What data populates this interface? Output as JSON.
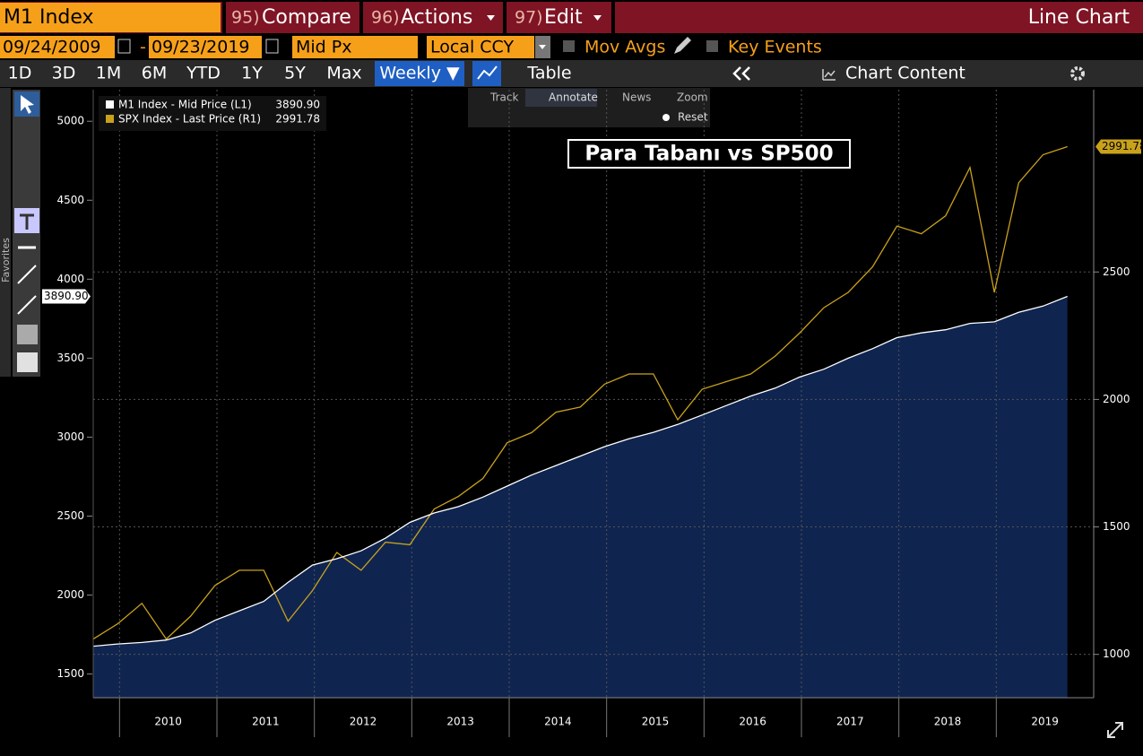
{
  "ui": {
    "security": "M1 Index",
    "menu": [
      {
        "num": "95)",
        "label": "Compare"
      },
      {
        "num": "96)",
        "label": "Actions"
      },
      {
        "num": "97)",
        "label": "Edit"
      }
    ],
    "view": "Line Chart",
    "start_date": "09/24/2009",
    "date_sep": "-",
    "end_date": "09/23/2019",
    "field": "Mid Px",
    "currency": "Local CCY",
    "options": [
      "Mov Avgs",
      "Key Events"
    ],
    "periods": [
      "1D",
      "3D",
      "1M",
      "6M",
      "YTD",
      "1Y",
      "5Y",
      "Max"
    ],
    "frequency": "Weekly ▼",
    "table": "Table",
    "chart_content": "Chart Content",
    "tools": [
      "Track",
      "Annotate",
      "News",
      "Zoom"
    ],
    "reset": "Reset",
    "favorites": "Favorites"
  },
  "chart_data": {
    "type": "line",
    "title": "Para Tabanı vs SP500",
    "x": [
      2009.73,
      2009.98,
      2010.23,
      2010.48,
      2010.73,
      2010.98,
      2011.23,
      2011.48,
      2011.73,
      2011.98,
      2012.23,
      2012.48,
      2012.73,
      2012.98,
      2013.23,
      2013.48,
      2013.73,
      2013.98,
      2014.23,
      2014.48,
      2014.73,
      2014.98,
      2015.23,
      2015.48,
      2015.73,
      2015.98,
      2016.23,
      2016.48,
      2016.73,
      2016.98,
      2017.23,
      2017.48,
      2017.73,
      2017.98,
      2018.23,
      2018.48,
      2018.73,
      2018.98,
      2019.23,
      2019.48,
      2019.73
    ],
    "series": [
      {
        "name": "M1 Index - Mid Price (L1)",
        "color": "#ffffff",
        "fill": "#0f2550",
        "values": [
          1676,
          1690,
          1700,
          1715,
          1760,
          1840,
          1900,
          1960,
          2080,
          2190,
          2230,
          2280,
          2360,
          2460,
          2520,
          2560,
          2620,
          2690,
          2760,
          2820,
          2880,
          2940,
          2990,
          3030,
          3080,
          3140,
          3200,
          3260,
          3310,
          3380,
          3430,
          3500,
          3560,
          3630,
          3660,
          3680,
          3720,
          3730,
          3790,
          3830,
          3890.9
        ],
        "value_labels": [
          null,
          null,
          null,
          null,
          null,
          null,
          null,
          null,
          null,
          null,
          null,
          null,
          null,
          null,
          null,
          null,
          null,
          null,
          null,
          null,
          null,
          null,
          null,
          null,
          null,
          null,
          null,
          null,
          null,
          null,
          null,
          null,
          null,
          null,
          null,
          null,
          null,
          null,
          null,
          null,
          "3890.90"
        ]
      },
      {
        "name": "SPX Index - Last Price (R1)",
        "color": "#c9a21c",
        "axis": "y2",
        "values": [
          1060,
          1120,
          1200,
          1060,
          1150,
          1270,
          1330,
          1330,
          1130,
          1250,
          1400,
          1330,
          1440,
          1430,
          1570,
          1620,
          1690,
          1830,
          1870,
          1950,
          1970,
          2060,
          2100,
          2100,
          1920,
          2040,
          2070,
          2100,
          2170,
          2260,
          2360,
          2420,
          2520,
          2680,
          2650,
          2720,
          2910,
          2420,
          2850,
          2960,
          2991.78
        ]
      }
    ],
    "xlim": [
      2009.73,
      2020.0
    ],
    "xticks": [
      {
        "value": 2010.5,
        "label": "2010"
      },
      {
        "value": 2011.5,
        "label": "2011"
      },
      {
        "value": 2012.5,
        "label": "2012"
      },
      {
        "value": 2013.5,
        "label": "2013"
      },
      {
        "value": 2014.5,
        "label": "2014"
      },
      {
        "value": 2015.5,
        "label": "2015"
      },
      {
        "value": 2016.5,
        "label": "2016"
      },
      {
        "value": 2017.5,
        "label": "2017"
      },
      {
        "value": 2018.5,
        "label": "2018"
      },
      {
        "value": 2019.5,
        "label": "2019"
      }
    ],
    "ylim": [
      1350,
      5200
    ],
    "yticks": [
      1500,
      2000,
      2500,
      3000,
      3500,
      4000,
      4500,
      5000
    ],
    "y2lim": [
      830,
      3215
    ],
    "y2ticks": [
      1000,
      1500,
      2000,
      2500
    ],
    "grid": true
  }
}
